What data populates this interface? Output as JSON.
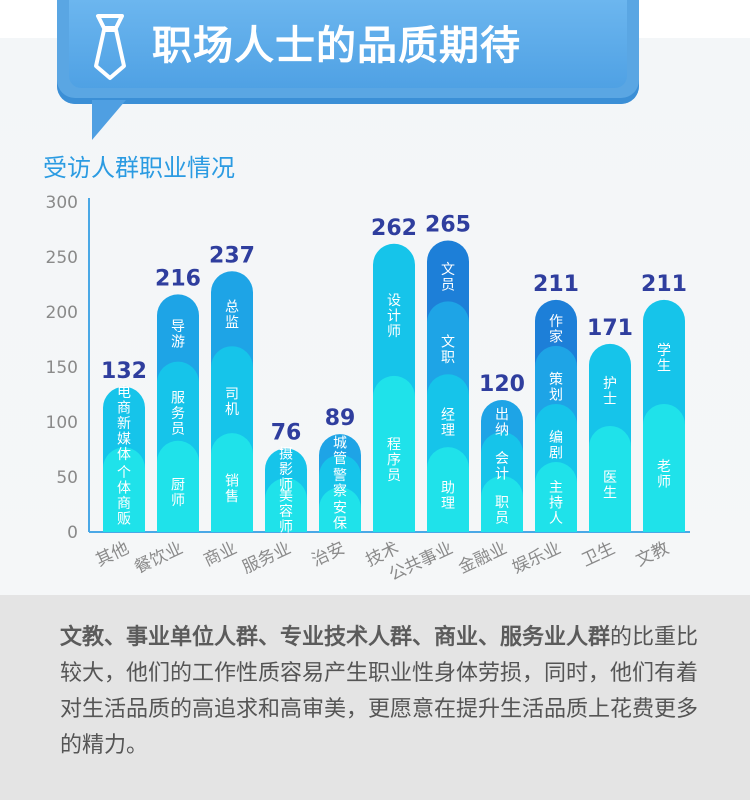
{
  "header": {
    "title": "职场人士的品质期待",
    "icon": "tie-icon"
  },
  "colors": {
    "banner": "#5aa6e3",
    "chart_title": "#2b9be2",
    "value_label": "#2f3e9e",
    "segment_palette": [
      "#1fe2ea",
      "#16c4ea",
      "#1ea4e6",
      "#1d7fd8",
      "#2d5bd0"
    ]
  },
  "chart_data": {
    "type": "bar",
    "title": "受访人群职业情况",
    "ylim": [
      0,
      300
    ],
    "yticks": [
      "300",
      "250",
      "200",
      "150",
      "100",
      "50",
      "0"
    ],
    "grid": false,
    "categories": [
      "其他",
      "餐饮业",
      "商业",
      "服务业",
      "治安",
      "技术",
      "公共事业",
      "金融业",
      "娱乐业",
      "卫生",
      "文教"
    ],
    "values": [
      132,
      216,
      237,
      76,
      89,
      262,
      265,
      120,
      211,
      171,
      211
    ],
    "stack_labels": [
      [
        "个体商贩",
        "电商新媒体"
      ],
      [
        "厨师",
        "服务员",
        "导游"
      ],
      [
        "销售",
        "司机",
        "总监"
      ],
      [
        "美容师",
        "摄影师"
      ],
      [
        "安保",
        "警察",
        "城管"
      ],
      [
        "程序员",
        "设计师"
      ],
      [
        "助理",
        "经理",
        "文职",
        "文员"
      ],
      [
        "职员",
        "会计",
        "出纳"
      ],
      [
        "主持人",
        "编剧",
        "策划",
        "作家"
      ],
      [
        "医生",
        "护士"
      ],
      [
        "老师",
        "学生"
      ]
    ]
  },
  "summary": {
    "bold": "文教、事业单位人群、专业技术人群、商业、服务业人群",
    "rest": "的比重比较大，他们的工作性质容易产生职业性身体劳损，同时，他们有着对生活品质的高追求和高审美，更愿意在提升生活品质上花费更多的精力。"
  }
}
